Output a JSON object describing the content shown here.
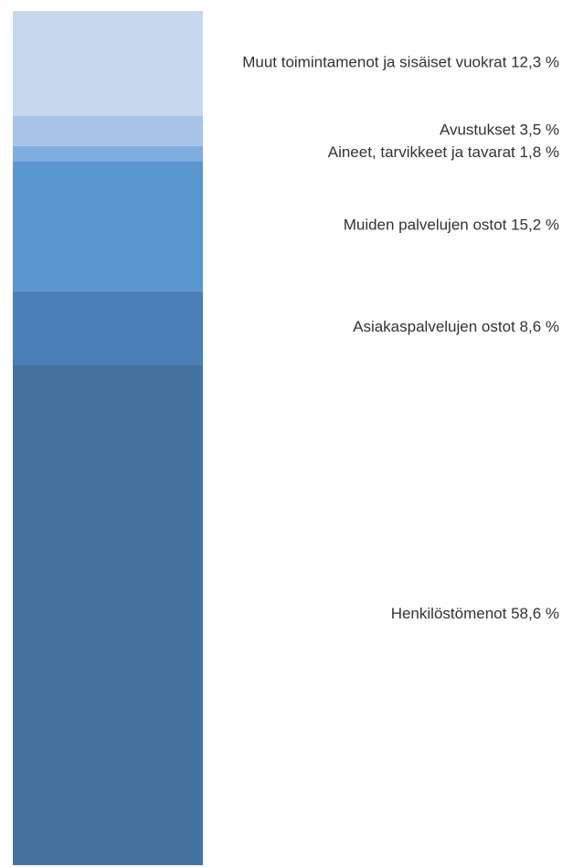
{
  "chart_data": {
    "type": "stacked_bar",
    "series": [
      {
        "name": "Henkilöstömenot",
        "color": "#44739f",
        "values": [
          58.6
        ],
        "value_labels": [
          "58,6 %"
        ]
      },
      {
        "name": "Asiakaspalvelujen ostot",
        "color": "#4a80b5",
        "values": [
          8.6
        ],
        "value_labels": [
          "8,6 %"
        ]
      },
      {
        "name": "Muiden palvelujen ostot",
        "color": "#5a96cf",
        "values": [
          15.2
        ],
        "value_labels": [
          "15,2 %"
        ]
      },
      {
        "name": "Aineet, tarvikkeet ja tavarat",
        "color": "#7eaee0",
        "values": [
          1.8
        ],
        "value_labels": [
          "1,8 %"
        ]
      },
      {
        "name": "Avustukset",
        "color": "#a6c4e8",
        "values": [
          3.5
        ],
        "value_labels": [
          "3,5 %"
        ]
      },
      {
        "name": "Muut toimintamenot ja sisäiset vuokrat",
        "color": "#c6d7ee",
        "values": [
          12.3
        ],
        "value_labels": [
          "12,3 %"
        ]
      }
    ],
    "ylim": [
      0,
      100
    ]
  }
}
